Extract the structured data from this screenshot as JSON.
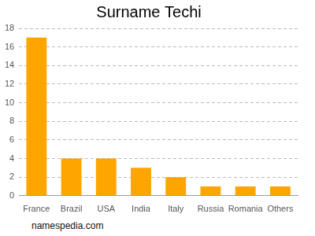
{
  "chart_data": {
    "type": "bar",
    "title": "Surname Techi",
    "categories": [
      "France",
      "Brazil",
      "USA",
      "India",
      "Italy",
      "Russia",
      "Romania",
      "Others"
    ],
    "values": [
      17,
      4,
      4,
      3,
      2,
      1,
      1,
      1
    ],
    "color": "#ffa500",
    "ylim": [
      0,
      18
    ],
    "yticks": [
      0,
      2,
      4,
      6,
      8,
      10,
      12,
      14,
      16,
      18
    ],
    "grid": true,
    "annotations": [
      "namespedia.com"
    ]
  }
}
